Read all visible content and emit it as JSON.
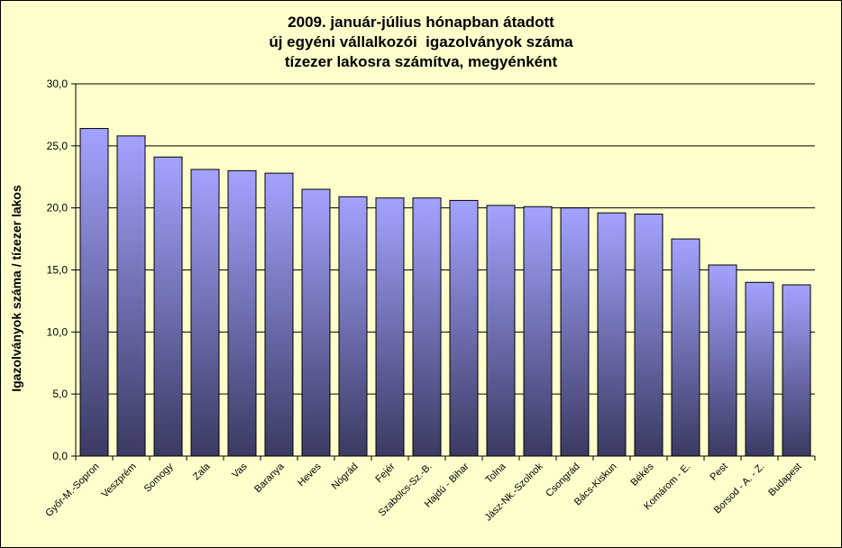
{
  "chart_data": {
    "type": "bar",
    "title_lines": [
      "2009. január-július hónapban átadott",
      "új egyéni vállalkozói  igazolványok száma",
      "tízezer lakosra számítva, megyénként"
    ],
    "xlabel": "",
    "ylabel": "Igazolványok száma / tízezer lakos",
    "ylim": [
      0,
      30
    ],
    "ytick_labels": [
      "0,0",
      "5,0",
      "10,0",
      "15,0",
      "20,0",
      "25,0",
      "30,0"
    ],
    "grid": true,
    "categories": [
      "Győr-M.-Sopron",
      "Veszprém",
      "Somogy",
      "Zala",
      "Vas",
      "Baranya",
      "Heves",
      "Nógrád",
      "Fejér",
      "Szabolcs-Sz.-B.",
      "Hajdú - Bihar",
      "Tolna",
      "Jász-Nk.-Szolnok",
      "Csongrád",
      "Bács-Kiskun",
      "Békés",
      "Komárom - E.",
      "Pest",
      "Borsod - A. - Z.",
      "Budapest"
    ],
    "values": [
      26.4,
      25.8,
      24.1,
      23.1,
      23.0,
      22.8,
      21.5,
      20.9,
      20.8,
      20.8,
      20.6,
      20.2,
      20.1,
      20.0,
      19.6,
      19.5,
      17.5,
      15.4,
      14.0,
      13.8
    ],
    "colors": {
      "plot_bg": "#ffffcc",
      "bar_top": "#a3a3ff",
      "bar_bottom": "#3a3a62",
      "grid": "#000000"
    }
  }
}
